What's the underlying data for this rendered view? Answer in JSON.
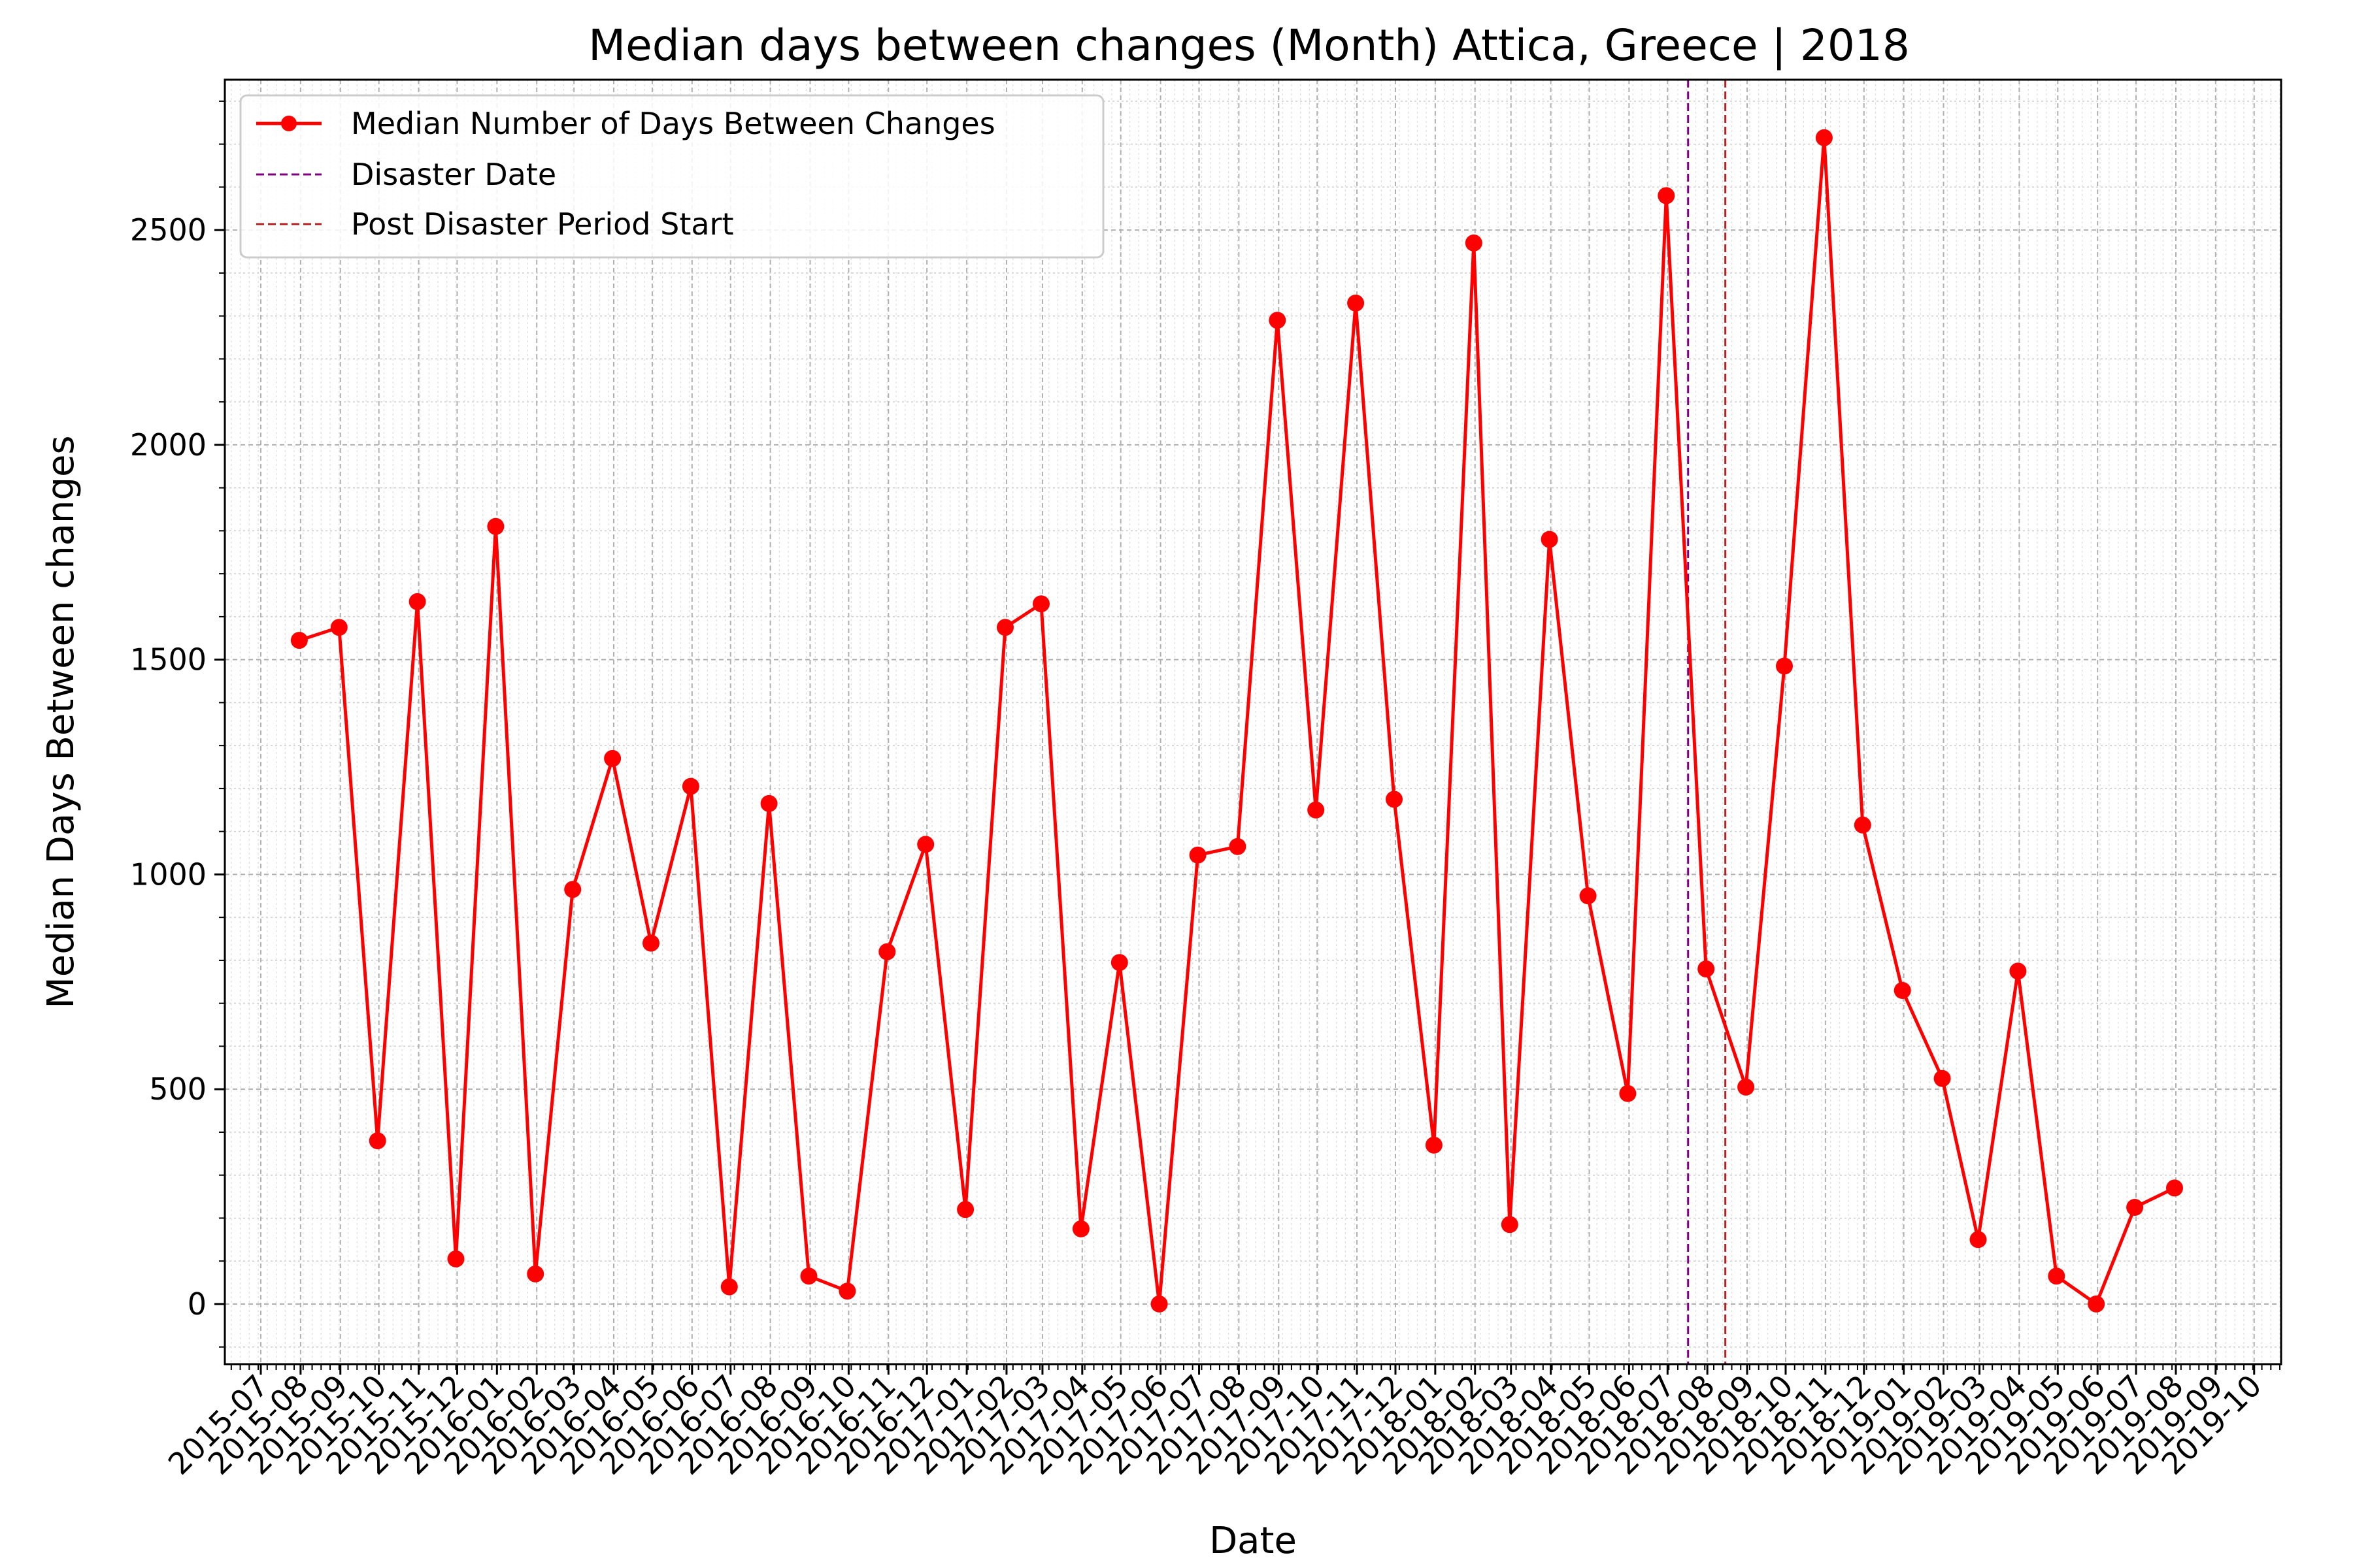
{
  "chart_data": {
    "type": "line",
    "title": "Median days between changes (Month) Attica, Greece | 2018",
    "xlabel": "Date",
    "ylabel": "Median Days Between changes",
    "ylim": [
      -140,
      2850
    ],
    "xlim": [
      "2015-06-03",
      "2019-10-22"
    ],
    "grid": true,
    "legend_position": "top-left",
    "yticks": [
      0,
      500,
      1000,
      1500,
      2000,
      2500
    ],
    "xticks": [
      "2015-07",
      "2015-08",
      "2015-09",
      "2015-10",
      "2015-11",
      "2015-12",
      "2016-01",
      "2016-02",
      "2016-03",
      "2016-04",
      "2016-05",
      "2016-06",
      "2016-07",
      "2016-08",
      "2016-09",
      "2016-10",
      "2016-11",
      "2016-12",
      "2017-01",
      "2017-02",
      "2017-03",
      "2017-04",
      "2017-05",
      "2017-06",
      "2017-07",
      "2017-08",
      "2017-09",
      "2017-10",
      "2017-11",
      "2017-12",
      "2018-01",
      "2018-02",
      "2018-03",
      "2018-04",
      "2018-05",
      "2018-06",
      "2018-07",
      "2018-08",
      "2018-09",
      "2018-10",
      "2018-11",
      "2018-12",
      "2019-01",
      "2019-02",
      "2019-03",
      "2019-04",
      "2019-05",
      "2019-06",
      "2019-07",
      "2019-08",
      "2019-09",
      "2019-10"
    ],
    "series": [
      {
        "name": "Median Number of Days Between Changes",
        "color": "#ff0000",
        "x": [
          "2015-07-31",
          "2015-08-31",
          "2015-09-30",
          "2015-10-31",
          "2015-11-30",
          "2015-12-31",
          "2016-01-31",
          "2016-02-29",
          "2016-03-31",
          "2016-04-30",
          "2016-05-31",
          "2016-06-30",
          "2016-07-31",
          "2016-08-31",
          "2016-09-30",
          "2016-10-31",
          "2016-11-30",
          "2016-12-31",
          "2017-01-31",
          "2017-02-28",
          "2017-03-31",
          "2017-04-30",
          "2017-05-31",
          "2017-06-30",
          "2017-07-31",
          "2017-08-31",
          "2017-09-30",
          "2017-10-31",
          "2017-11-30",
          "2017-12-31",
          "2018-01-31",
          "2018-02-28",
          "2018-03-31",
          "2018-04-30",
          "2018-05-31",
          "2018-06-30",
          "2018-07-31",
          "2018-08-31",
          "2018-09-30",
          "2018-10-31",
          "2018-11-30",
          "2018-12-31",
          "2019-01-31",
          "2019-02-28",
          "2019-03-31",
          "2019-04-30",
          "2019-05-31",
          "2019-06-30",
          "2019-07-31"
        ],
        "values": [
          1545,
          1575,
          380,
          1635,
          105,
          1810,
          70,
          965,
          1270,
          840,
          1205,
          40,
          1165,
          65,
          30,
          820,
          1070,
          220,
          1575,
          1630,
          175,
          795,
          0,
          1045,
          1065,
          2290,
          1150,
          2330,
          1175,
          370,
          2470,
          185,
          1780,
          950,
          490,
          2580,
          780,
          505,
          1485,
          2715,
          1115,
          730,
          525,
          150,
          775,
          65,
          0,
          225,
          270
        ]
      }
    ],
    "vlines": [
      {
        "name": "Disaster Date",
        "x": "2018-07-17",
        "color": "#800080",
        "style": "dashed"
      },
      {
        "name": "Post Disaster Period Start",
        "x": "2018-08-15",
        "color": "#b22222",
        "style": "dashed"
      }
    ]
  }
}
